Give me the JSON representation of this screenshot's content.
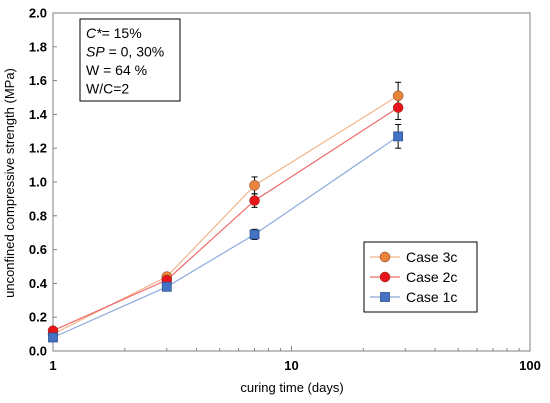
{
  "chart_data": {
    "type": "scatter",
    "x_scale": "log",
    "xlabel": "curing time (days)",
    "ylabel": "unconfined compressive strength (MPa)",
    "xlim": [
      1,
      100
    ],
    "ylim": [
      0.0,
      2.0
    ],
    "x_ticks": [
      1,
      10,
      100
    ],
    "x_tick_labels": [
      "1",
      "10",
      "100"
    ],
    "y_ticks": [
      0.0,
      0.2,
      0.4,
      0.6,
      0.8,
      1.0,
      1.2,
      1.4,
      1.6,
      1.8,
      2.0
    ],
    "y_tick_labels": [
      "0.0",
      "0.2",
      "0.4",
      "0.6",
      "0.8",
      "1.0",
      "1.2",
      "1.4",
      "1.6",
      "1.8",
      "2.0"
    ],
    "grid": false,
    "legend_position": "lower-right",
    "annotation": {
      "lines": [
        {
          "parts": [
            {
              "t": "C*",
              "italic": true
            },
            {
              "t": "= 15%",
              "italic": false
            }
          ]
        },
        {
          "parts": [
            {
              "t": "SP",
              "italic": true
            },
            {
              "t": " = 0, 30%",
              "italic": false
            }
          ]
        },
        {
          "parts": [
            {
              "t": "W = 64 %",
              "italic": false
            }
          ]
        },
        {
          "parts": [
            {
              "t": "W/C=2",
              "italic": false
            }
          ]
        }
      ]
    },
    "series": [
      {
        "name": "Case 3c",
        "marker": "circle",
        "color": "#E8853A",
        "line_color": "#F2B58A",
        "x": [
          1,
          3,
          7,
          28
        ],
        "y": [
          0.1,
          0.44,
          0.98,
          1.51
        ],
        "err": [
          0.0,
          0.02,
          0.05,
          0.08
        ]
      },
      {
        "name": "Case 2c",
        "marker": "circle",
        "color": "#E8141B",
        "line_color": "#EF6A6A",
        "x": [
          1,
          3,
          7,
          28
        ],
        "y": [
          0.12,
          0.42,
          0.89,
          1.44
        ],
        "err": [
          0.0,
          0.02,
          0.04,
          0.07
        ]
      },
      {
        "name": "Case 1c",
        "marker": "square",
        "color": "#4472C4",
        "line_color": "#8FAADC",
        "x": [
          1,
          3,
          7,
          28
        ],
        "y": [
          0.08,
          0.38,
          0.69,
          1.27
        ],
        "err": [
          0.0,
          0.01,
          0.03,
          0.07
        ]
      }
    ],
    "legend_order": [
      0,
      1,
      2
    ]
  }
}
